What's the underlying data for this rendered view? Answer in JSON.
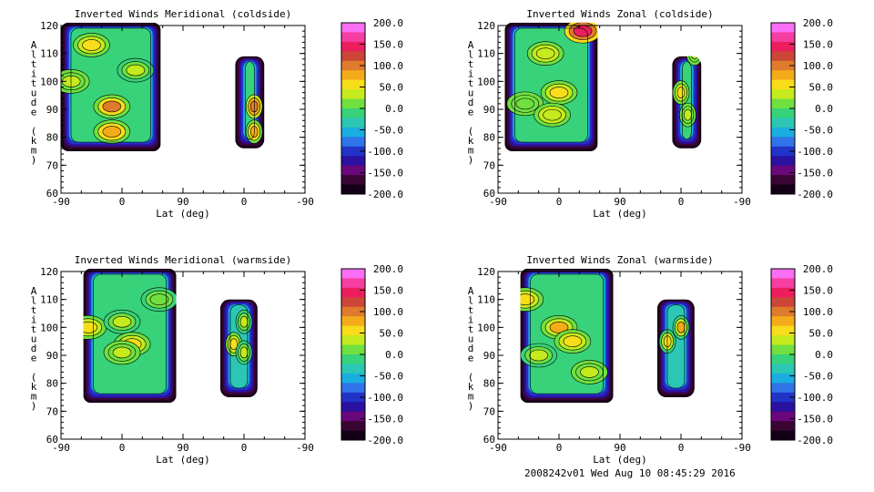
{
  "footer": "2008242v01 Wed Aug 10 08:45:29 2016",
  "colorbar": {
    "tick_labels": [
      "200.0",
      "150.0",
      "100.0",
      "50.0",
      "0.0",
      "-50.0",
      "-100.0",
      "-150.0",
      "-200.0"
    ],
    "colors": [
      "#fa6ef5",
      "#f53da2",
      "#ec1e5e",
      "#cc4637",
      "#df7b2c",
      "#f4ab1a",
      "#f8dd1a",
      "#c5ea1d",
      "#6fe040",
      "#38d27a",
      "#2cc7b4",
      "#19aedf",
      "#2f74e8",
      "#2233c8",
      "#2a11a0",
      "#6b077d",
      "#3a0433",
      "#140016"
    ],
    "range": [
      -200,
      200
    ]
  },
  "chart_data": [
    {
      "type": "contour",
      "title": "Inverted Winds Meridional (coldside)",
      "xlabel": "Lat (deg)",
      "ylabel": "Altitude (km)",
      "xticks": [
        "-90",
        "0",
        "90",
        "0",
        "-90"
      ],
      "yticks": [
        "60",
        "70",
        "80",
        "90",
        "100",
        "110",
        "120"
      ],
      "ylim": [
        60,
        120
      ],
      "xrange_note": "-90 to 90 (ascending), 90 to -90 (descending)",
      "regions": [
        {
          "lat_from": -90,
          "lat_to": 57,
          "alt_from": 75,
          "alt_to": 121,
          "mean_value": -20
        },
        {
          "lat_from": 13,
          "lat_to": -30,
          "alt_from": 76,
          "alt_to": 109,
          "mean_value": -10
        }
      ],
      "features": [
        {
          "lat": -45,
          "alt": 113,
          "value": 50
        },
        {
          "lat": -75,
          "alt": 100,
          "value": 40
        },
        {
          "lat": -15,
          "alt": 82,
          "value": 80
        },
        {
          "lat": 20,
          "alt": 104,
          "value": 30
        },
        {
          "lat": -15,
          "alt": 91,
          "value": 100
        }
      ]
    },
    {
      "type": "contour",
      "title": "Inverted Winds Zonal (coldside)",
      "xlabel": "Lat (deg)",
      "ylabel": "Altitude (km)",
      "xticks": [
        "-90",
        "0",
        "90",
        "0",
        "-90"
      ],
      "yticks": [
        "60",
        "70",
        "80",
        "90",
        "100",
        "110",
        "120"
      ],
      "ylim": [
        60,
        120
      ],
      "xrange_note": "-90 to 90 (ascending), 90 to -90 (descending)",
      "regions": [
        {
          "lat_from": -80,
          "lat_to": 57,
          "alt_from": 75,
          "alt_to": 121,
          "mean_value": 0
        },
        {
          "lat_from": 13,
          "lat_to": -30,
          "alt_from": 76,
          "alt_to": 109,
          "mean_value": -20
        }
      ],
      "features": [
        {
          "lat": -20,
          "alt": 110,
          "value": 40
        },
        {
          "lat": 35,
          "alt": 118,
          "value": 150
        },
        {
          "lat": 0,
          "alt": 96,
          "value": 50
        },
        {
          "lat": -50,
          "alt": 92,
          "value": 20
        },
        {
          "lat": -10,
          "alt": 88,
          "value": 40
        }
      ]
    },
    {
      "type": "contour",
      "title": "Inverted Winds Meridional (warmside)",
      "xlabel": "Lat (deg)",
      "ylabel": "Altitude (km)",
      "xticks": [
        "-90",
        "0",
        "90",
        "0",
        "-90"
      ],
      "yticks": [
        "60",
        "70",
        "80",
        "90",
        "100",
        "110",
        "120"
      ],
      "ylim": [
        60,
        120
      ],
      "xrange_note": "-90 to 90 (ascending), 90 to -90 (descending)",
      "regions": [
        {
          "lat_from": -57,
          "lat_to": 80,
          "alt_from": 73,
          "alt_to": 121,
          "mean_value": -20
        },
        {
          "lat_from": 35,
          "lat_to": -20,
          "alt_from": 75,
          "alt_to": 110,
          "mean_value": -30
        }
      ],
      "features": [
        {
          "lat": -50,
          "alt": 100,
          "value": 50
        },
        {
          "lat": 0,
          "alt": 102,
          "value": 30
        },
        {
          "lat": 15,
          "alt": 94,
          "value": 60
        },
        {
          "lat": 0,
          "alt": 91,
          "value": 40
        },
        {
          "lat": 55,
          "alt": 110,
          "value": 10
        }
      ]
    },
    {
      "type": "contour",
      "title": "Inverted Winds Zonal (warmside)",
      "xlabel": "Lat (deg)",
      "ylabel": "Altitude (km)",
      "xticks": [
        "-90",
        "0",
        "90",
        "0",
        "-90"
      ],
      "yticks": [
        "60",
        "70",
        "80",
        "90",
        "100",
        "110",
        "120"
      ],
      "ylim": [
        60,
        120
      ],
      "xrange_note": "-90 to 90 (ascending), 90 to -90 (descending)",
      "regions": [
        {
          "lat_from": -57,
          "lat_to": 80,
          "alt_from": 73,
          "alt_to": 121,
          "mean_value": -20
        },
        {
          "lat_from": 35,
          "lat_to": -20,
          "alt_from": 75,
          "alt_to": 110,
          "mean_value": -40
        }
      ],
      "features": [
        {
          "lat": -50,
          "alt": 110,
          "value": 60
        },
        {
          "lat": 0,
          "alt": 100,
          "value": 70
        },
        {
          "lat": 20,
          "alt": 95,
          "value": 50
        },
        {
          "lat": -30,
          "alt": 90,
          "value": 30
        },
        {
          "lat": 45,
          "alt": 84,
          "value": 40
        }
      ]
    }
  ]
}
